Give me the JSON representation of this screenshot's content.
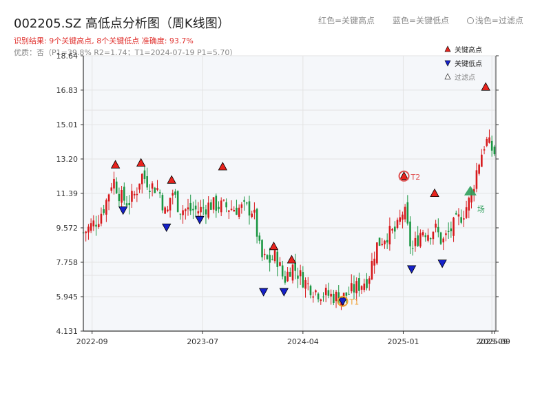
{
  "title": "002205.SZ 高低点分析图（周K线图）",
  "subtitle_result": "识别结果: 9个关键高点, 8个关键低点  准确度: 93.7%",
  "subtitle_quality": "优质：否（P1=39.8%  R2=1.74；T1=2024-07-19 P1=5.70）",
  "top_legend": [
    "红色=关键高点",
    "蓝色=关键低点",
    "浅色=过滤点"
  ],
  "colors": {
    "up": "#d7191c",
    "down": "#1a9641",
    "high": "#e8231d",
    "low": "#1521c9",
    "filtered": "#2e9e5b",
    "t1": "#f0a030",
    "t2": "#e05050",
    "axis": "#333333"
  },
  "chart_data": {
    "type": "candlestick",
    "title": "002205.SZ 高低点分析图（周K线图）",
    "x_range": [
      "2022-08-08",
      "2025-09-12"
    ],
    "ylim": [
      4.131,
      18.64
    ],
    "y_ticks": [
      "4.131",
      "5.945",
      "7.758",
      "9.572",
      "11.39",
      "13.20",
      "15.01",
      "16.83",
      "18.64"
    ],
    "x_ticks": [
      {
        "date": "2022-09-01",
        "label": "2022-09"
      },
      {
        "date": "2023-07-01",
        "label": "2023-07"
      },
      {
        "date": "2024-04-01",
        "label": "2024-04"
      },
      {
        "date": "2025-01-01",
        "label": "2025-01"
      },
      {
        "date": "2025-09-01",
        "label": "2025-09"
      },
      {
        "date": "2025-09-08",
        "label": "2025-09"
      }
    ],
    "grid": true,
    "legend_position": "top-right",
    "legend": [
      "关键高点",
      "关键低点",
      "过滤点"
    ],
    "key_highs": [
      {
        "date": "2022-11-04",
        "price": 12.9
      },
      {
        "date": "2023-01-13",
        "price": 13.0
      },
      {
        "date": "2023-04-07",
        "price": 12.1
      },
      {
        "date": "2023-08-25",
        "price": 12.8
      },
      {
        "date": "2024-01-12",
        "price": 8.6
      },
      {
        "date": "2024-03-01",
        "price": 7.9
      },
      {
        "date": "2025-01-03",
        "price": 12.3
      },
      {
        "date": "2025-03-28",
        "price": 11.4
      },
      {
        "date": "2025-08-15",
        "price": 17.0
      }
    ],
    "key_lows": [
      {
        "date": "2022-11-25",
        "price": 10.5
      },
      {
        "date": "2023-03-24",
        "price": 9.6
      },
      {
        "date": "2023-06-23",
        "price": 10.0
      },
      {
        "date": "2023-12-15",
        "price": 6.2
      },
      {
        "date": "2024-02-09",
        "price": 6.2
      },
      {
        "date": "2024-07-19",
        "price": 5.7
      },
      {
        "date": "2025-01-24",
        "price": 7.4
      },
      {
        "date": "2025-04-18",
        "price": 7.7
      }
    ],
    "filtered_points": [
      {
        "date": "2025-07-04",
        "price": 11.5
      }
    ],
    "annotations": [
      {
        "text": "T1",
        "date": "2024-07-19",
        "price": 5.7
      },
      {
        "text": "T2",
        "date": "2025-01-03",
        "price": 12.3
      },
      {
        "text": "场",
        "date": "2025-07-04",
        "price": 10.6
      }
    ],
    "anchors": [
      [
        "2022-08-08",
        9.3
      ],
      [
        "2022-09-16",
        10.0
      ],
      [
        "2022-10-07",
        10.8
      ],
      [
        "2022-10-28",
        12.2
      ],
      [
        "2022-11-18",
        11.2
      ],
      [
        "2022-12-09",
        10.9
      ],
      [
        "2022-12-30",
        11.4
      ],
      [
        "2023-01-13",
        12.4
      ],
      [
        "2023-02-10",
        11.8
      ],
      [
        "2023-03-03",
        11.6
      ],
      [
        "2023-03-24",
        10.1
      ],
      [
        "2023-04-07",
        11.6
      ],
      [
        "2023-04-28",
        10.6
      ],
      [
        "2023-05-19",
        10.5
      ],
      [
        "2023-06-23",
        10.5
      ],
      [
        "2023-07-21",
        10.8
      ],
      [
        "2023-08-25",
        10.7
      ],
      [
        "2023-09-22",
        10.6
      ],
      [
        "2023-10-27",
        10.6
      ],
      [
        "2023-11-17",
        10.5
      ],
      [
        "2023-12-08",
        8.0
      ],
      [
        "2023-12-29",
        7.8
      ],
      [
        "2024-01-19",
        8.1
      ],
      [
        "2024-02-09",
        6.8
      ],
      [
        "2024-03-01",
        7.6
      ],
      [
        "2024-04-12",
        6.6
      ],
      [
        "2024-05-10",
        6.2
      ],
      [
        "2024-06-14",
        6.0
      ],
      [
        "2024-07-19",
        5.9
      ],
      [
        "2024-08-23",
        6.4
      ],
      [
        "2024-09-27",
        6.9
      ],
      [
        "2024-10-18",
        8.6
      ],
      [
        "2024-11-15",
        9.2
      ],
      [
        "2024-12-13",
        9.4
      ],
      [
        "2025-01-03",
        10.6
      ],
      [
        "2025-01-24",
        8.3
      ],
      [
        "2025-02-21",
        9.5
      ],
      [
        "2025-03-14",
        9.3
      ],
      [
        "2025-03-28",
        9.6
      ],
      [
        "2025-04-18",
        8.8
      ],
      [
        "2025-05-16",
        9.6
      ],
      [
        "2025-06-13",
        10.3
      ],
      [
        "2025-07-04",
        11.1
      ],
      [
        "2025-07-25",
        12.9
      ],
      [
        "2025-08-15",
        14.2
      ],
      [
        "2025-09-12",
        13.4
      ]
    ]
  }
}
